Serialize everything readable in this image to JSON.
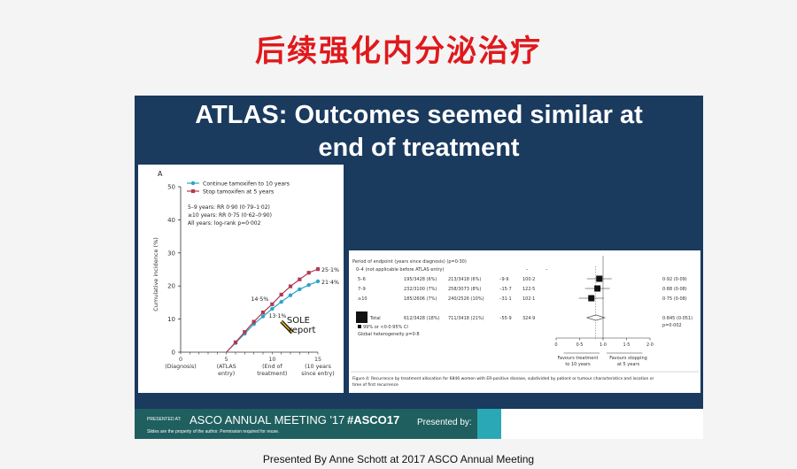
{
  "cn_title": "后续强化内分泌治疗",
  "slide_title_line1": "ATLAS:  Outcomes seemed similar at",
  "slide_title_line2": "end of treatment",
  "chart_data": [
    {
      "type": "line",
      "panel_label": "A",
      "ylabel": "Cumulative incidence (%)",
      "ylim": [
        0,
        50
      ],
      "y_ticks": [
        0,
        10,
        20,
        30,
        40,
        50
      ],
      "xlim": [
        0,
        15
      ],
      "x_ticks": [
        {
          "value": 0,
          "label": [
            "0",
            "(Diagnosis)"
          ]
        },
        {
          "value": 5,
          "label": [
            "5",
            "(ATLAS",
            "entry)"
          ]
        },
        {
          "value": 10,
          "label": [
            "10",
            "(End of",
            "treatment)"
          ]
        },
        {
          "value": 15,
          "label": [
            "15",
            "(10 years",
            "since entry)"
          ]
        }
      ],
      "series": [
        {
          "name": "Continue tamoxifen to 10 years",
          "color": "#2aa4c9",
          "marker": "circle",
          "x": [
            5,
            6,
            7,
            8,
            9,
            10,
            11,
            12,
            13,
            14,
            15
          ],
          "y": [
            0,
            2.8,
            5.6,
            8.5,
            10.8,
            13.1,
            15.2,
            17.2,
            19.0,
            20.3,
            21.4
          ]
        },
        {
          "name": "Stop tamoxifen at 5 years",
          "color": "#b03a55",
          "marker": "square",
          "x": [
            5,
            6,
            7,
            8,
            9,
            10,
            11,
            12,
            13,
            14,
            15
          ],
          "y": [
            0,
            3.0,
            6.1,
            9.2,
            12.0,
            14.5,
            17.4,
            19.9,
            22.0,
            24.0,
            25.1
          ]
        }
      ],
      "stats": [
        "5–9 years: RR 0·90 (0·79–1·02)",
        "≥10 years: RR 0·75 (0·62–0·90)",
        "All years: log-rank p=0·002"
      ],
      "annotations": [
        "14·5%",
        "13·1%",
        "25·1%",
        "21·4%"
      ],
      "callout": [
        "SOLE",
        "report"
      ]
    },
    {
      "type": "forest",
      "header": "Period of endpoint (years since diagnosis) (p=0·30)",
      "subheader": "0–4 (not applicable before ATLAS entry)",
      "rows": [
        {
          "label": "5–6",
          "c1": "195/3428 (6%)",
          "c2": "213/3418 (6%)",
          "oe": "–9·9",
          "var": "100·2",
          "rr": 0.92,
          "rr_text": "0·92 (0·09)"
        },
        {
          "label": "7–9",
          "c1": "232/3100 (7%)",
          "c2": "258/3073 (8%)",
          "oe": "–15·7",
          "var": "122·5",
          "rr": 0.88,
          "rr_text": "0·88 (0·08)"
        },
        {
          "label": "≥10",
          "c1": "185/2606 (7%)",
          "c2": "240/2526 (10%)",
          "oe": "–31·1",
          "var": "102·1",
          "rr": 0.75,
          "rr_text": "0·75 (0·08)"
        }
      ],
      "total": {
        "label": "Total",
        "c1": "612/3428 (18%)",
        "c2": "711/3418 (21%)",
        "oe": "–55·9",
        "var": "324·9",
        "rr": 0.845,
        "rr_text": "0·845 (0·051)"
      },
      "ci_note": "99% or <0·0·95% CI",
      "heterogeneity": "Global heterogeneity p=0·8",
      "p_value": "p=0·002",
      "x_ticks": [
        "0",
        "0·5",
        "1·0",
        "1·5",
        "2·0"
      ],
      "axis_left_label": [
        "Favours treatment",
        "to 10 years"
      ],
      "axis_right_label": [
        "Favours stopping",
        "at 5 years"
      ],
      "caption": [
        "Figure 4: Recurrence by treatment allocation for 6846 women with ER-positive disease, subdivided by patient or tumour characteristics and location or",
        "time of first recurrence"
      ]
    }
  ],
  "footer": {
    "presented_at": "PRESENTED AT:",
    "meeting": "ASCO ANNUAL MEETING '17",
    "hashtag": "#ASCO17",
    "presented_by": "Presented by:",
    "disclaimer": "Slides are the property of the author. Permission required for reuse."
  },
  "bottom_caption": "Presented By Anne Schott at 2017 ASCO Annual Meeting",
  "colors": {
    "title_red": "#e0191c",
    "slide_bg": "#1a3a5e",
    "footer_teal": "#1f5f5f",
    "accent_cyan": "#2aa8b5"
  }
}
